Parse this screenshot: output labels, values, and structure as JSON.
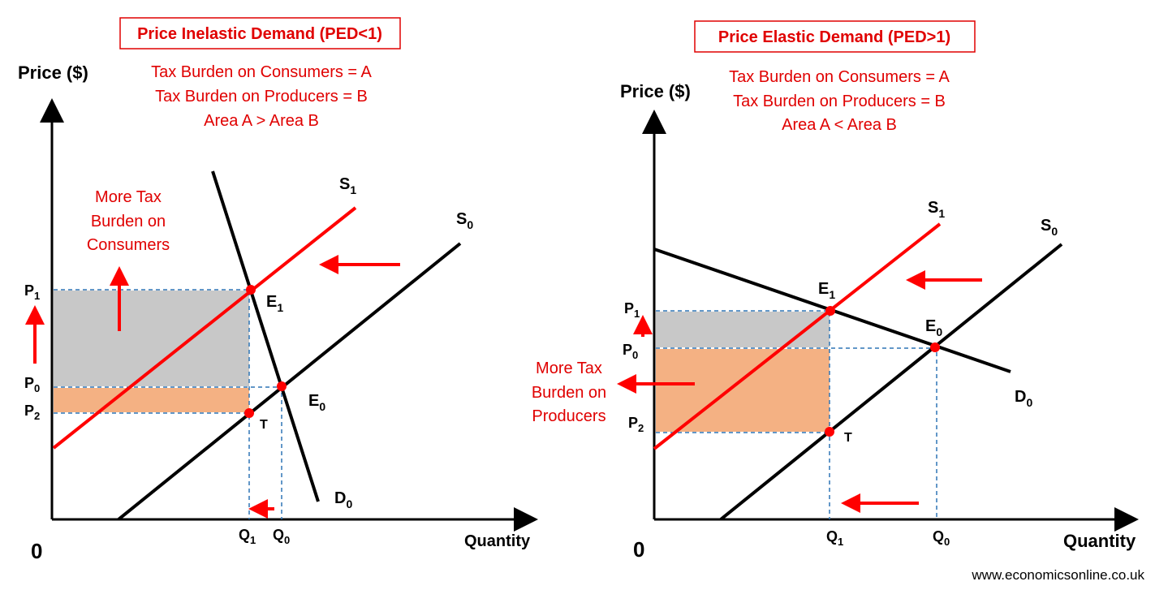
{
  "left": {
    "title": "Price Inelastic Demand (PED<1)",
    "notes": [
      "Tax Burden on Consumers = A",
      "Tax Burden on Producers = B",
      "Area A > Area B"
    ],
    "y_axis": "Price ($)",
    "x_axis": "Quantity",
    "origin": "0",
    "burden_note": [
      "More Tax",
      "Burden on",
      "Consumers"
    ],
    "supply_new": "S",
    "supply_new_sub": "1",
    "supply_old": "S",
    "supply_old_sub": "0",
    "demand": "D",
    "demand_sub": "0",
    "eq_new": "E",
    "eq_new_sub": "1",
    "eq_old": "E",
    "eq_old_sub": "0",
    "tax_point": "T",
    "p1": "P",
    "p1_sub": "1",
    "p0": "P",
    "p0_sub": "0",
    "p2": "P",
    "p2_sub": "2",
    "q1": "Q",
    "q1_sub": "1",
    "q0": "Q",
    "q0_sub": "0"
  },
  "right": {
    "title": "Price Elastic Demand (PED>1)",
    "notes": [
      "Tax Burden on Consumers = A",
      "Tax Burden on Producers = B",
      "Area A < Area B"
    ],
    "y_axis": "Price ($)",
    "x_axis": "Quantity",
    "origin": "0",
    "burden_note": [
      "More Tax",
      "Burden on",
      "Producers"
    ],
    "supply_new": "S",
    "supply_new_sub": "1",
    "supply_old": "S",
    "supply_old_sub": "0",
    "demand": "D",
    "demand_sub": "0",
    "eq_new": "E",
    "eq_new_sub": "1",
    "eq_old": "E",
    "eq_old_sub": "0",
    "tax_point": "T",
    "p1": "P",
    "p1_sub": "1",
    "p0": "P",
    "p0_sub": "0",
    "p2": "P",
    "p2_sub": "2",
    "q1": "Q",
    "q1_sub": "1",
    "q0": "Q",
    "q0_sub": "0"
  },
  "footer": "www.economicsonline.co.uk",
  "colors": {
    "accent": "#e00000",
    "supply_new": "#ff0000",
    "guides": "#2e75b6",
    "area_a": "#c8c8c8",
    "area_b": "#f4b183"
  }
}
